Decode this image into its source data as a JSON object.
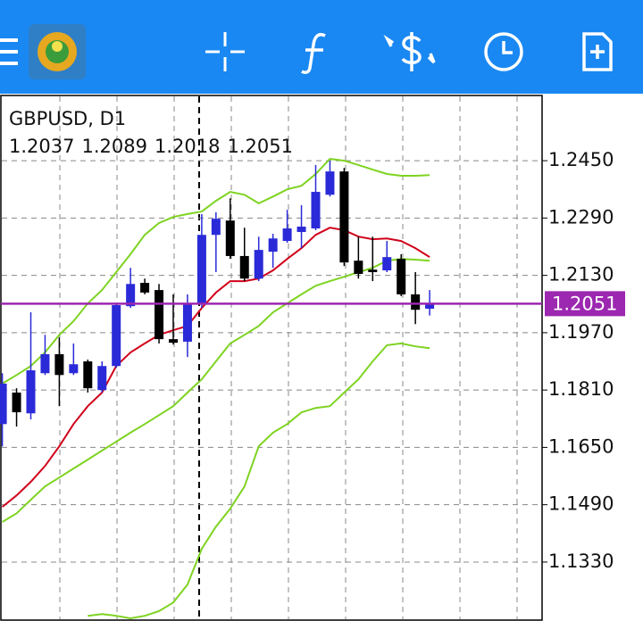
{
  "chart_data": {
    "type": "candlestick",
    "title": "GBPUSD, D1",
    "candles": [
      {
        "open": 1.1715,
        "high": 1.1857,
        "low": 1.1653,
        "close": 1.1828
      },
      {
        "open": 1.1803,
        "high": 1.1815,
        "low": 1.1708,
        "close": 1.1748
      },
      {
        "open": 1.1745,
        "high": 1.2027,
        "low": 1.1728,
        "close": 1.1865
      },
      {
        "open": 1.1857,
        "high": 1.1964,
        "low": 1.1852,
        "close": 1.191
      },
      {
        "open": 1.191,
        "high": 1.1957,
        "low": 1.1765,
        "close": 1.1852
      },
      {
        "open": 1.1857,
        "high": 1.194,
        "low": 1.1852,
        "close": 1.1882
      },
      {
        "open": 1.189,
        "high": 1.1895,
        "low": 1.1803,
        "close": 1.1815
      },
      {
        "open": 1.181,
        "high": 1.189,
        "low": 1.1803,
        "close": 1.1877
      },
      {
        "open": 1.1877,
        "high": 1.2052,
        "low": 1.1872,
        "close": 1.2047
      },
      {
        "open": 1.2044,
        "high": 1.2151,
        "low": 1.2039,
        "close": 1.2106
      },
      {
        "open": 1.2109,
        "high": 1.2121,
        "low": 1.2077,
        "close": 1.2082
      },
      {
        "open": 1.2089,
        "high": 1.2106,
        "low": 1.194,
        "close": 1.1952
      },
      {
        "open": 1.1952,
        "high": 1.2077,
        "low": 1.1937,
        "close": 1.1942
      },
      {
        "open": 1.1945,
        "high": 1.2077,
        "low": 1.1902,
        "close": 1.2052
      },
      {
        "open": 1.2052,
        "high": 1.2301,
        "low": 1.2039,
        "close": 1.2243
      },
      {
        "open": 1.2243,
        "high": 1.2306,
        "low": 1.2139,
        "close": 1.2288
      },
      {
        "open": 1.2283,
        "high": 1.2345,
        "low": 1.2176,
        "close": 1.2184
      },
      {
        "open": 1.2184,
        "high": 1.2263,
        "low": 1.2114,
        "close": 1.2121
      },
      {
        "open": 1.2121,
        "high": 1.2238,
        "low": 1.2114,
        "close": 1.2201
      },
      {
        "open": 1.2196,
        "high": 1.2246,
        "low": 1.2151,
        "close": 1.2233
      },
      {
        "open": 1.2226,
        "high": 1.2313,
        "low": 1.2221,
        "close": 1.2261
      },
      {
        "open": 1.2251,
        "high": 1.2326,
        "low": 1.2206,
        "close": 1.2266
      },
      {
        "open": 1.2261,
        "high": 1.2438,
        "low": 1.2256,
        "close": 1.2363
      },
      {
        "open": 1.2355,
        "high": 1.245,
        "low": 1.235,
        "close": 1.242
      },
      {
        "open": 1.242,
        "high": 1.243,
        "low": 1.2156,
        "close": 1.2166
      },
      {
        "open": 1.2171,
        "high": 1.2238,
        "low": 1.2121,
        "close": 1.2134
      },
      {
        "open": 1.2146,
        "high": 1.2238,
        "low": 1.2114,
        "close": 1.2139
      },
      {
        "open": 1.2144,
        "high": 1.2226,
        "low": 1.2139,
        "close": 1.2181
      },
      {
        "open": 1.2176,
        "high": 1.2189,
        "low": 1.2072,
        "close": 1.2077
      },
      {
        "open": 1.2077,
        "high": 1.2139,
        "low": 1.1994,
        "close": 1.2034
      },
      {
        "open": 1.2037,
        "high": 1.2089,
        "low": 1.2018,
        "close": 1.2051
      }
    ],
    "bull_color": "#2a2ad8",
    "bear_color": "#000000",
    "lines": [
      {
        "color": "#7ed321",
        "values": [
          1.1828,
          1.1852,
          1.1877,
          1.1915,
          1.1964,
          1.2002,
          1.2052,
          1.2089,
          1.2139,
          1.2189,
          1.2243,
          1.2276,
          1.2293,
          1.2301,
          1.2308,
          1.2338,
          1.2363,
          1.2355,
          1.2331,
          1.235,
          1.237,
          1.238,
          1.2413,
          1.2455,
          1.245,
          1.2438,
          1.2425,
          1.2413,
          1.2408,
          1.2408,
          1.241
        ]
      },
      {
        "color": "#d0021b",
        "values": [
          1.1484,
          1.1516,
          1.1554,
          1.1598,
          1.1653,
          1.1715,
          1.1765,
          1.1803,
          1.1877,
          1.1915,
          1.194,
          1.1964,
          1.1977,
          1.1989,
          1.2039,
          1.2082,
          1.2114,
          1.2114,
          1.2121,
          1.2144,
          1.2176,
          1.2206,
          1.2243,
          1.2263,
          1.2256,
          1.2238,
          1.2231,
          1.2233,
          1.2226,
          1.2206,
          1.2181
        ]
      },
      {
        "color": "#7ed321",
        "values": [
          1.1442,
          1.1466,
          1.1504,
          1.1541,
          1.1566,
          1.1591,
          1.1616,
          1.1641,
          1.1666,
          1.1691,
          1.1715,
          1.174,
          1.1765,
          1.1803,
          1.184,
          1.189,
          1.194,
          1.1964,
          1.1989,
          1.2027,
          1.2052,
          1.2077,
          1.2101,
          1.2114,
          1.2126,
          1.2139,
          1.2151,
          1.2171,
          1.2176,
          1.2174,
          1.2171
        ]
      },
      {
        "color": "#7ed321",
        "values": [
          null,
          null,
          null,
          null,
          null,
          null,
          1.118,
          1.1185,
          1.118,
          1.1173,
          1.118,
          1.1193,
          1.1217,
          1.1267,
          1.1367,
          1.1429,
          1.1479,
          1.1541,
          1.1653,
          1.1691,
          1.1715,
          1.1748,
          1.176,
          1.1765,
          1.1803,
          1.184,
          1.189,
          1.1935,
          1.194,
          1.1932,
          1.1927
        ]
      }
    ],
    "price_line_color": "#9c27b0",
    "ylim": [
      1.1173,
      1.2632
    ],
    "yticks": [
      {
        "value": 1.245,
        "label": "1.2450"
      },
      {
        "value": 1.229,
        "label": "1.2290"
      },
      {
        "value": 1.213,
        "label": "1.2130"
      },
      {
        "value": 1.197,
        "label": "1.1970"
      },
      {
        "value": 1.181,
        "label": "1.1810"
      },
      {
        "value": 1.165,
        "label": "1.1650"
      },
      {
        "value": 1.149,
        "label": "1.1490"
      },
      {
        "value": 1.133,
        "label": "1.1330"
      }
    ],
    "grid": true
  }
}
